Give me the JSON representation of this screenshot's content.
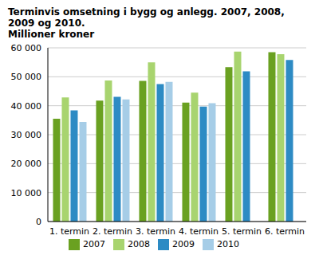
{
  "chart_data": {
    "type": "bar",
    "title": "Terminvis omsetning i bygg og anlegg. 2007, 2008, 2009 og 2010.",
    "subtitle": "Millioner kroner",
    "categories": [
      "1. termin",
      "2. termin",
      "3. termin",
      "4. termin",
      "5. termin",
      "6. termin"
    ],
    "series": [
      {
        "name": "2007",
        "color": "#6aa121",
        "values": [
          35500,
          41800,
          48600,
          41100,
          53300,
          58500
        ]
      },
      {
        "name": "2008",
        "color": "#a8d46f",
        "values": [
          42900,
          48700,
          55000,
          44500,
          58700,
          57800
        ]
      },
      {
        "name": "2009",
        "color": "#2d8bc4",
        "values": [
          38400,
          43100,
          47500,
          39700,
          51900,
          55800
        ]
      },
      {
        "name": "2010",
        "color": "#a6cde7",
        "values": [
          34400,
          42200,
          48200,
          40900,
          null,
          null
        ]
      }
    ],
    "ylim": [
      0,
      60000
    ],
    "yticks": [
      0,
      {
        "value": 10000,
        "label": "10 000"
      },
      {
        "value": 20000,
        "label": "20 000"
      },
      {
        "value": 30000,
        "label": "30 000"
      },
      {
        "value": 40000,
        "label": "40 000"
      },
      {
        "value": 50000,
        "label": "50 000"
      },
      {
        "value": 60000,
        "label": "60 000"
      }
    ],
    "grid": true,
    "legend": "bottom"
  }
}
